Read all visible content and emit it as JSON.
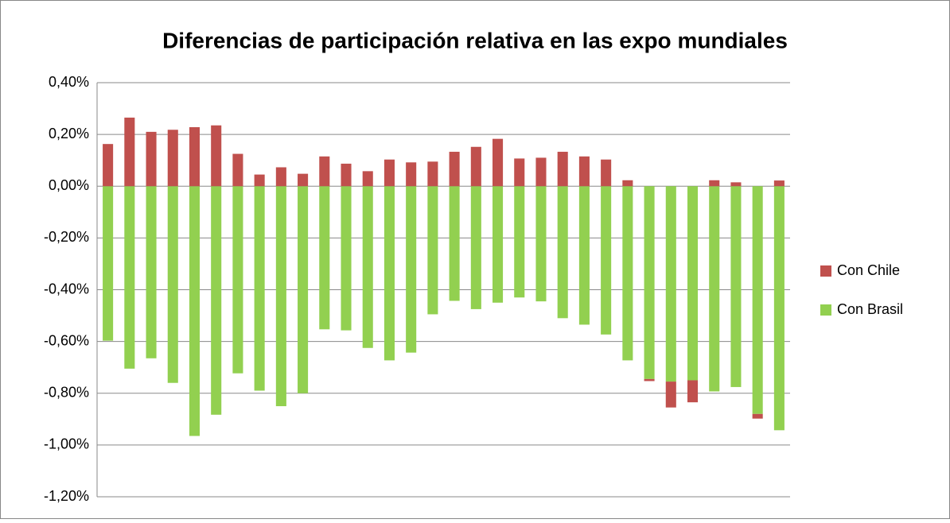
{
  "chart_data": {
    "type": "stacked_bar",
    "title": "Diferencias de participación relativa en las expo mundiales",
    "categories": [
      null,
      null,
      null,
      null,
      null,
      null,
      null,
      null,
      null,
      null,
      null,
      null,
      null,
      null,
      null,
      null,
      null,
      null,
      null,
      null,
      null,
      null,
      null,
      null,
      null,
      null,
      null,
      null,
      null,
      null,
      null,
      null
    ],
    "series": [
      {
        "name": "Con Chile",
        "color": "#c0504d",
        "values": [
          0.163,
          0.265,
          0.21,
          0.218,
          0.228,
          0.235,
          0.125,
          0.045,
          0.073,
          0.048,
          0.115,
          0.087,
          0.058,
          0.103,
          0.092,
          0.095,
          0.133,
          0.152,
          0.183,
          0.107,
          0.11,
          0.133,
          0.115,
          0.103,
          0.023,
          -0.008,
          -0.1,
          -0.085,
          0.023,
          0.015,
          -0.018,
          0.022
        ]
      },
      {
        "name": "Con Brasil",
        "color": "#92d050",
        "values": [
          -0.597,
          -0.705,
          -0.665,
          -0.76,
          -0.965,
          -0.883,
          -0.723,
          -0.79,
          -0.85,
          -0.8,
          -0.553,
          -0.557,
          -0.625,
          -0.673,
          -0.643,
          -0.495,
          -0.443,
          -0.475,
          -0.45,
          -0.43,
          -0.445,
          -0.51,
          -0.535,
          -0.573,
          -0.673,
          -0.745,
          -0.755,
          -0.75,
          -0.793,
          -0.776,
          -0.88,
          -0.943
        ]
      }
    ],
    "ylim": [
      -1.2,
      0.4
    ],
    "yticks": [
      {
        "value": -1.2,
        "label": "-1,20%"
      },
      {
        "value": -1.0,
        "label": "-1,00%"
      },
      {
        "value": -0.8,
        "label": "-0,80%"
      },
      {
        "value": -0.6,
        "label": "-0,60%"
      },
      {
        "value": -0.4,
        "label": "-0,40%"
      },
      {
        "value": -0.2,
        "label": "-0,20%"
      },
      {
        "value": 0,
        "label": "0,00%"
      },
      {
        "value": 0.2,
        "label": "0,20%"
      },
      {
        "value": 0.4,
        "label": "0,40%"
      }
    ],
    "grid": true,
    "legend": "right"
  }
}
